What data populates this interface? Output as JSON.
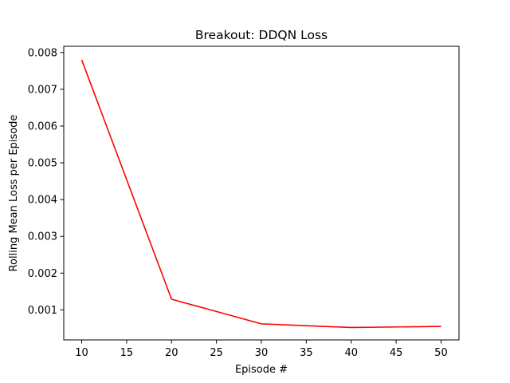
{
  "chart_data": {
    "type": "line",
    "title": "Breakout: DDQN Loss",
    "xlabel": "Episode #",
    "ylabel": "Rolling Mean Loss per Episode",
    "x": [
      10,
      20,
      30,
      40,
      50
    ],
    "series": [
      {
        "values": [
          0.0078,
          0.00129,
          0.00062,
          0.00052,
          0.00055
        ],
        "color": "#ff0000"
      }
    ],
    "xlim": [
      8,
      52
    ],
    "ylim": [
      0.000183,
      0.00817
    ],
    "x_ticks": [
      10,
      15,
      20,
      25,
      30,
      35,
      40,
      45,
      50
    ],
    "x_tick_labels": [
      "10",
      "15",
      "20",
      "25",
      "30",
      "35",
      "40",
      "45",
      "50"
    ],
    "y_ticks": [
      0.001,
      0.002,
      0.003,
      0.004,
      0.005,
      0.006,
      0.007,
      0.008
    ],
    "y_tick_labels": [
      "0.001",
      "0.002",
      "0.003",
      "0.004",
      "0.005",
      "0.006",
      "0.007",
      "0.008"
    ],
    "grid": false,
    "legend": "none"
  }
}
